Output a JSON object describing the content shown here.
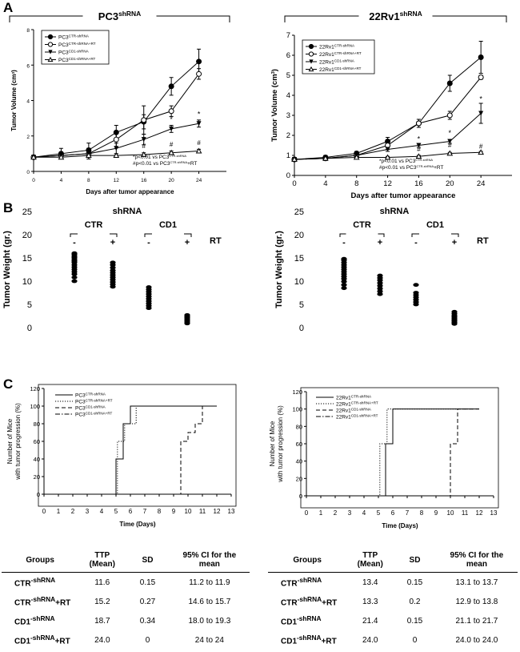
{
  "panel_labels": {
    "a": "A",
    "b": "B",
    "c": "C"
  },
  "chart_data": [
    {
      "id": "A-left",
      "type": "line",
      "title": "PC3",
      "title_sup": "shRNA",
      "xlabel": "Days after tumor appearance",
      "ylabel": "Tumor Volume (cm",
      "ylabel_sup": "3",
      "ylabel_end": ")",
      "x": [
        0,
        4,
        8,
        12,
        16,
        20,
        24
      ],
      "xlim": [
        0,
        28
      ],
      "ylim": [
        0,
        8
      ],
      "xticks": [
        0,
        4,
        8,
        12,
        16,
        20,
        24
      ],
      "yticks": [
        0,
        2,
        4,
        6,
        8
      ],
      "series": [
        {
          "name": "PC3",
          "sup": "CTR-shRNA",
          "marker": "filled-circle",
          "values": [
            0.8,
            1.0,
            1.2,
            2.2,
            2.8,
            4.8,
            6.2
          ],
          "err": [
            0.1,
            0.3,
            0.4,
            0.4,
            0.4,
            0.5,
            0.7
          ]
        },
        {
          "name": "PC3",
          "sup": "CTR-shRNA+RT",
          "marker": "open-circle",
          "values": [
            0.8,
            0.9,
            1.0,
            1.8,
            2.9,
            3.4,
            5.5
          ],
          "err": [
            0.1,
            0.2,
            0.3,
            0.4,
            0.8,
            0.3,
            0.3
          ]
        },
        {
          "name": "PC3",
          "sup": "CD1-shRNA",
          "marker": "filled-triangle-down",
          "values": [
            0.8,
            0.9,
            1.0,
            1.3,
            1.8,
            2.4,
            2.7
          ],
          "err": [
            0.1,
            0.2,
            0.3,
            0.3,
            0.3,
            0.2,
            0.2
          ]
        },
        {
          "name": "PC3",
          "sup": "CD1-shRNA+RT",
          "marker": "open-triangle-up",
          "values": [
            0.8,
            0.8,
            0.9,
            0.9,
            0.95,
            1.05,
            1.15
          ],
          "err": [
            0.1,
            0.1,
            0.1,
            0.1,
            0.1,
            0.1,
            0.1
          ]
        }
      ],
      "annotations": {
        "star": {
          "x": [
            20,
            24
          ],
          "y": [
            2.8,
            3.1
          ],
          "label": "*"
        },
        "hash": {
          "x": [
            16,
            20,
            24
          ],
          "y": [
            1.3,
            1.4,
            1.5
          ],
          "label": "#"
        },
        "notes": [
          {
            "pre": "*p<0.01 vs PC3",
            "sup": "CTR-shRNA",
            "post": ""
          },
          {
            "pre": "#p<0.01 vs PC3",
            "sup": "CTR-shRNA",
            "post": "+RT"
          }
        ]
      }
    },
    {
      "id": "A-right",
      "type": "line",
      "title": "22Rv1",
      "title_sup": "shRNA",
      "xlabel": "Days after tumor appearance",
      "ylabel": "Tumor Volume (cm",
      "ylabel_sup": "3",
      "ylabel_end": ")",
      "x": [
        0,
        4,
        8,
        12,
        16,
        20,
        24
      ],
      "xlim": [
        0,
        28
      ],
      "ylim": [
        0,
        7
      ],
      "xticks": [
        0,
        4,
        8,
        12,
        16,
        20,
        24
      ],
      "yticks": [
        0,
        1,
        2,
        3,
        4,
        5,
        6,
        7
      ],
      "series": [
        {
          "name": "22Rv1",
          "sup": "CTR-shRNA",
          "marker": "filled-circle",
          "values": [
            0.8,
            0.9,
            1.1,
            1.7,
            2.6,
            4.6,
            5.9
          ],
          "err": [
            0.1,
            0.1,
            0.1,
            0.2,
            0.2,
            0.4,
            0.8
          ]
        },
        {
          "name": "22Rv1",
          "sup": "CTR-shRNA+RT",
          "marker": "open-circle",
          "values": [
            0.8,
            0.85,
            1.0,
            1.5,
            2.6,
            3.0,
            4.9
          ],
          "err": [
            0.1,
            0.1,
            0.1,
            0.2,
            0.2,
            0.2,
            0.1
          ]
        },
        {
          "name": "22Rv1",
          "sup": "CD1-shRNA",
          "marker": "filled-triangle-down",
          "values": [
            0.8,
            0.85,
            1.0,
            1.3,
            1.5,
            1.7,
            3.1
          ],
          "err": [
            0.1,
            0.1,
            0.1,
            0.1,
            0.1,
            0.1,
            0.5
          ]
        },
        {
          "name": "22Rv1",
          "sup": "CD1-shRNA+RT",
          "marker": "open-triangle-up",
          "values": [
            0.8,
            0.85,
            0.9,
            0.9,
            0.95,
            1.1,
            1.15
          ],
          "err": [
            0.05,
            0.05,
            0.05,
            0.05,
            0.05,
            0.05,
            0.05
          ]
        }
      ],
      "annotations": {
        "star": {
          "x": [
            16,
            20,
            24
          ],
          "y": [
            1.7,
            2.0,
            3.7
          ],
          "label": "*"
        },
        "hash": {
          "x": [
            16,
            20,
            24
          ],
          "y": [
            1.2,
            1.4,
            1.35
          ],
          "label": "#"
        },
        "notes": [
          {
            "pre": "*p<0.01 vs PC3",
            "sup": "CTR-shRNA",
            "post": ""
          },
          {
            "pre": "#p<0.01 vs PC3",
            "sup": "CTR-shRNA",
            "post": "+RT"
          }
        ]
      }
    },
    {
      "id": "B-left",
      "type": "scatter",
      "ylabel": "Tumor Weight (gr.)",
      "ylim": [
        0,
        25
      ],
      "yticks": [
        0,
        5,
        10,
        15,
        20,
        25
      ],
      "header": "shRNA",
      "groups": [
        "CTR",
        "CD1"
      ],
      "rt_label": "RT",
      "signs": [
        "-",
        "+",
        "-",
        "+"
      ],
      "columns": [
        {
          "group": "CTR",
          "rt": "-",
          "values": [
            10,
            10.8,
            11.5,
            12,
            12.5,
            13,
            13.5,
            14,
            14.3,
            14.6,
            15,
            15.3,
            15.7,
            16
          ]
        },
        {
          "group": "CTR",
          "rt": "+",
          "values": [
            8.8,
            9.3,
            9.8,
            10.3,
            10.8,
            11.3,
            11.8,
            12.3,
            12.9,
            13.5,
            14
          ]
        },
        {
          "group": "CD1",
          "rt": "-",
          "values": [
            4.2,
            4.7,
            5.2,
            5.7,
            6.2,
            6.7,
            7.2,
            7.7,
            8.2,
            8.7
          ]
        },
        {
          "group": "CD1",
          "rt": "+",
          "values": [
            0.9,
            1.2,
            1.5,
            1.8,
            2.1,
            2.4,
            2.7
          ]
        }
      ]
    },
    {
      "id": "B-right",
      "type": "scatter",
      "ylabel": "Tumor Weight (gr.)",
      "ylim": [
        0,
        25
      ],
      "yticks": [
        0,
        5,
        10,
        15,
        20,
        25
      ],
      "header": "shRNA",
      "groups": [
        "CTR",
        "CD1"
      ],
      "rt_label": "RT",
      "signs": [
        "-",
        "+",
        "-",
        "+"
      ],
      "columns": [
        {
          "group": "CTR",
          "rt": "-",
          "values": [
            8.5,
            9.2,
            9.9,
            10.5,
            11,
            11.5,
            12,
            12.5,
            13,
            13.5,
            14,
            14.5,
            14.8
          ]
        },
        {
          "group": "CTR",
          "rt": "+",
          "values": [
            7.2,
            7.8,
            8.4,
            9,
            9.6,
            10.2,
            10.7,
            11.2
          ]
        },
        {
          "group": "CD1",
          "rt": "-",
          "values": [
            5,
            5.5,
            6,
            6.5,
            7,
            7.5,
            9.2
          ]
        },
        {
          "group": "CD1",
          "rt": "+",
          "values": [
            0.8,
            1.1,
            1.4,
            1.7,
            2,
            2.3,
            2.6,
            3,
            3.4
          ]
        }
      ]
    },
    {
      "id": "C-left",
      "type": "line",
      "kind": "step",
      "xlabel": "Time (Days)",
      "ylabel_lines": [
        "Number of Mice",
        "with tumor progression (%)"
      ],
      "xlim": [
        0,
        13
      ],
      "ylim": [
        0,
        120
      ],
      "xticks": [
        0,
        1,
        2,
        3,
        4,
        5,
        6,
        7,
        8,
        9,
        10,
        11,
        12,
        13
      ],
      "yticks": [
        0,
        20,
        40,
        60,
        80,
        100,
        120
      ],
      "series": [
        {
          "name": "PC3",
          "sup": "CTR-shRNA",
          "style": "solid",
          "x": [
            0,
            5.0,
            5.0,
            5.5,
            5.5,
            6.0,
            6.0,
            6.5,
            6.5,
            12
          ],
          "y": [
            0,
            0,
            40,
            40,
            80,
            80,
            100,
            100,
            100,
            100
          ]
        },
        {
          "name": "PC3",
          "sup": "CTR-shRNA+RT",
          "style": "dotted",
          "x": [
            0,
            5.1,
            5.1,
            5.6,
            5.6,
            6.1,
            6.1,
            6.4,
            6.4,
            11.6
          ],
          "y": [
            0,
            0,
            60,
            60,
            80,
            80,
            80,
            80,
            100,
            100
          ]
        },
        {
          "name": "PC3",
          "sup": "CD1-shRNA",
          "style": "dashed",
          "x": [
            0,
            9.5,
            9.5,
            10.0,
            10.0,
            10.5,
            10.5,
            11.0,
            11.0,
            12
          ],
          "y": [
            0,
            0,
            60,
            60,
            70,
            70,
            80,
            80,
            100,
            100
          ]
        },
        {
          "name": "PC3",
          "sup": "CD1-shRNA+RT",
          "style": "dashdot",
          "x": [
            0,
            11.8
          ],
          "y": [
            0,
            0
          ]
        }
      ]
    },
    {
      "id": "C-right",
      "type": "line",
      "kind": "step",
      "xlabel": "Time (Days)",
      "ylabel_lines": [
        "Number of Mice",
        "with tumor progression (%)"
      ],
      "xlim": [
        0,
        13
      ],
      "ylim": [
        0,
        120
      ],
      "xticks": [
        0,
        1,
        2,
        3,
        4,
        5,
        6,
        7,
        8,
        9,
        10,
        11,
        12,
        13
      ],
      "yticks": [
        0,
        20,
        40,
        60,
        80,
        100,
        120
      ],
      "series": [
        {
          "name": "22Rv1",
          "sup": "CTR-shRNA",
          "style": "solid",
          "x": [
            0,
            5.5,
            5.5,
            6.0,
            6.0,
            12
          ],
          "y": [
            0,
            0,
            60,
            60,
            100,
            100
          ]
        },
        {
          "name": "22Rv1",
          "sup": "CTR-shRNA+RT",
          "style": "dotted",
          "x": [
            0,
            5.1,
            5.1,
            5.6,
            5.6,
            11.6
          ],
          "y": [
            0,
            0,
            60,
            60,
            100,
            100
          ]
        },
        {
          "name": "22Rv1",
          "sup": "CD1-shRNA",
          "style": "dashed",
          "x": [
            0,
            10.0,
            10.0,
            10.5,
            10.5,
            12
          ],
          "y": [
            0,
            0,
            60,
            60,
            100,
            100
          ]
        },
        {
          "name": "22Rv1",
          "sup": "CD1-shRNA+RT",
          "style": "dashdot",
          "x": [
            0,
            11.8
          ],
          "y": [
            0,
            0
          ]
        }
      ]
    },
    {
      "id": "C-table-left",
      "type": "table",
      "columns": [
        "Groups",
        "TTP (Mean)",
        "SD",
        "95% CI for the mean"
      ],
      "rows": [
        {
          "group": "CTR",
          "sup": "-shRNA",
          "post": "",
          "ttp": "11.6",
          "sd": "0.15",
          "ci": "11.2 to 11.9"
        },
        {
          "group": "CTR",
          "sup": "-shRNA",
          "post": "+RT",
          "ttp": "15.2",
          "sd": "0.27",
          "ci": "14.6 to 15.7"
        },
        {
          "group": "CD1",
          "sup": "-shRNA",
          "post": "",
          "ttp": "18.7",
          "sd": "0.34",
          "ci": "18.0 to 19.3"
        },
        {
          "group": "CD1",
          "sup": "-shRNA",
          "post": "+RT",
          "ttp": "24.0",
          "sd": "0",
          "ci": "24 to 24"
        }
      ]
    },
    {
      "id": "C-table-right",
      "type": "table",
      "columns": [
        "Groups",
        "TTP (Mean)",
        "SD",
        "95% CI for the mean"
      ],
      "rows": [
        {
          "group": "CTR",
          "sup": "-shRNA",
          "post": "",
          "ttp": "13.4",
          "sd": "0.15",
          "ci": "13.1 to 13.7"
        },
        {
          "group": "CTR",
          "sup": "-shRNA",
          "post": "+RT",
          "ttp": "13.3",
          "sd": "0.2",
          "ci": "12.9 to 13.8"
        },
        {
          "group": "CD1",
          "sup": "-shRNA",
          "post": "",
          "ttp": "21.4",
          "sd": "0.15",
          "ci": "21.1 to 21.7"
        },
        {
          "group": "CD1",
          "sup": "-shRNA",
          "post": "+RT",
          "ttp": "24.0",
          "sd": "0",
          "ci": "24.0 to 24.0"
        }
      ]
    }
  ]
}
